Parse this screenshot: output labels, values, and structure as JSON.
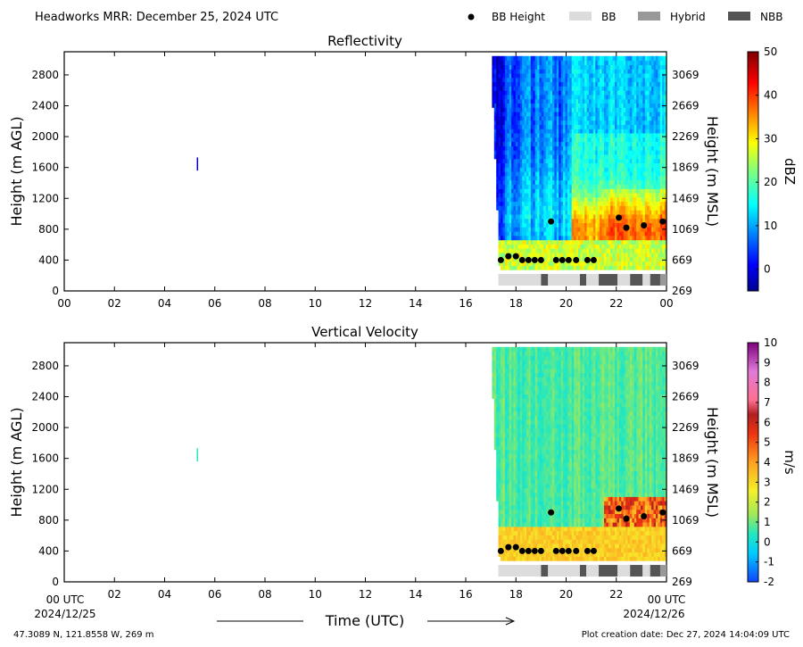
{
  "header": {
    "title": "Headworks MRR:  December 25, 2024 UTC"
  },
  "legend": [
    {
      "label": "BB Height",
      "kind": "dot",
      "color": "#000000"
    },
    {
      "label": "BB",
      "kind": "rect",
      "color": "#dcdcdc"
    },
    {
      "label": "Hybrid",
      "kind": "rect",
      "color": "#999999"
    },
    {
      "label": "NBB",
      "kind": "rect",
      "color": "#555555"
    }
  ],
  "axes": {
    "x_ticks": [
      "00",
      "02",
      "04",
      "06",
      "08",
      "10",
      "12",
      "14",
      "16",
      "18",
      "20",
      "22",
      "00"
    ],
    "x_first_tick": "00 UTC",
    "x_last_tick": "00 UTC",
    "date_start": "2024/12/25",
    "date_end": "2024/12/26",
    "xlabel": "Time (UTC)",
    "y_left_ticks": [
      "0",
      "400",
      "800",
      "1200",
      "1600",
      "2000",
      "2400",
      "2800"
    ],
    "y_left_label": "Height (m AGL)",
    "y_right_ticks": [
      "269",
      "669",
      "1069",
      "1469",
      "1869",
      "2269",
      "2669",
      "3069"
    ],
    "y_right_label": "Height (m MSL)"
  },
  "footer": {
    "location": "47.3089 N, 121.8558 W, 269 m",
    "created": "Plot creation date: Dec 27, 2024 14:04:09 UTC"
  },
  "chart_data": [
    {
      "type": "heatmap",
      "title": "Reflectivity",
      "xlabel": "Time (UTC)",
      "ylabel": "Height (m AGL)",
      "ylabel_right": "Height (m MSL)",
      "xlim": [
        0,
        24
      ],
      "ylim": [
        0,
        3100
      ],
      "colorbar": {
        "label": "dBZ",
        "min": -5,
        "max": 50,
        "ticks": [
          0,
          10,
          20,
          30,
          40,
          50
        ]
      },
      "bb_height": {
        "x": [
          17.4,
          17.7,
          18.0,
          18.25,
          18.5,
          18.75,
          19.0,
          19.4,
          19.6,
          19.85,
          20.1,
          20.4,
          20.85,
          21.1,
          22.1,
          22.4,
          23.1,
          23.85
        ],
        "y": [
          400,
          450,
          450,
          400,
          400,
          400,
          400,
          900,
          400,
          400,
          400,
          400,
          400,
          400,
          950,
          820,
          850,
          900
        ]
      },
      "classification": [
        {
          "start": 17.3,
          "end": 19.0,
          "class": "BB"
        },
        {
          "start": 19.0,
          "end": 19.28,
          "class": "NBB"
        },
        {
          "start": 19.28,
          "end": 20.55,
          "class": "BB"
        },
        {
          "start": 20.55,
          "end": 20.8,
          "class": "NBB"
        },
        {
          "start": 20.8,
          "end": 21.3,
          "class": "BB"
        },
        {
          "start": 21.3,
          "end": 22.05,
          "class": "NBB"
        },
        {
          "start": 22.05,
          "end": 22.55,
          "class": "BB"
        },
        {
          "start": 22.55,
          "end": 23.05,
          "class": "NBB"
        },
        {
          "start": 23.05,
          "end": 23.35,
          "class": "BB"
        },
        {
          "start": 23.35,
          "end": 23.75,
          "class": "NBB"
        },
        {
          "start": 23.75,
          "end": 24.0,
          "class": "Hybrid"
        }
      ]
    },
    {
      "type": "heatmap",
      "title": "Vertical Velocity",
      "xlabel": "Time (UTC)",
      "ylabel": "Height (m AGL)",
      "ylabel_right": "Height (m MSL)",
      "xlim": [
        0,
        24
      ],
      "ylim": [
        0,
        3100
      ],
      "colorbar": {
        "label": "m/s",
        "min": -2,
        "max": 10,
        "ticks": [
          -2,
          -1,
          0,
          1,
          2,
          3,
          4,
          5,
          6,
          7,
          8,
          9,
          10
        ]
      },
      "bb_height": {
        "x": [
          17.4,
          17.7,
          18.0,
          18.25,
          18.5,
          18.75,
          19.0,
          19.4,
          19.6,
          19.85,
          20.1,
          20.4,
          20.85,
          21.1,
          22.1,
          22.4,
          23.1,
          23.85
        ],
        "y": [
          400,
          450,
          450,
          400,
          400,
          400,
          400,
          900,
          400,
          400,
          400,
          400,
          400,
          400,
          950,
          820,
          850,
          900
        ]
      },
      "classification": [
        {
          "start": 17.3,
          "end": 19.0,
          "class": "BB"
        },
        {
          "start": 19.0,
          "end": 19.28,
          "class": "NBB"
        },
        {
          "start": 19.28,
          "end": 20.55,
          "class": "BB"
        },
        {
          "start": 20.55,
          "end": 20.8,
          "class": "NBB"
        },
        {
          "start": 20.8,
          "end": 21.3,
          "class": "BB"
        },
        {
          "start": 21.3,
          "end": 22.05,
          "class": "NBB"
        },
        {
          "start": 22.05,
          "end": 22.55,
          "class": "BB"
        },
        {
          "start": 22.55,
          "end": 23.05,
          "class": "NBB"
        },
        {
          "start": 23.05,
          "end": 23.35,
          "class": "BB"
        },
        {
          "start": 23.35,
          "end": 23.75,
          "class": "NBB"
        },
        {
          "start": 23.75,
          "end": 24.0,
          "class": "Hybrid"
        }
      ]
    }
  ]
}
